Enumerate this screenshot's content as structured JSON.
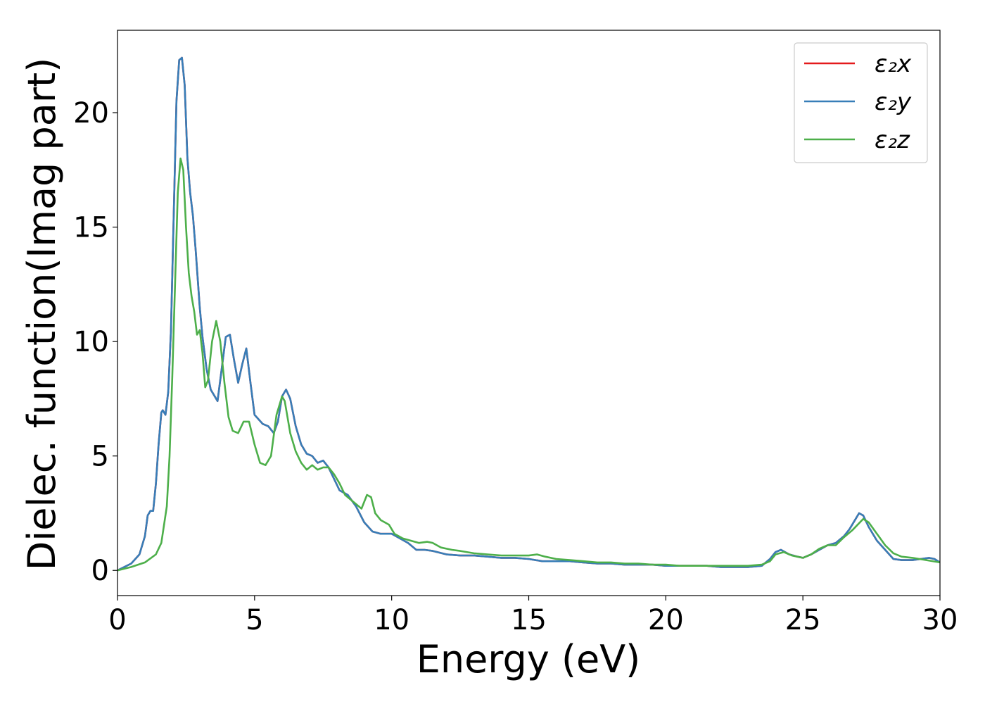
{
  "chart_data": {
    "type": "line",
    "xlabel": "Energy (eV)",
    "ylabel": "Dielec. function(Imag part)",
    "xlim": [
      0,
      30
    ],
    "ylim": [
      -1.1,
      23.6
    ],
    "xticks": [
      0,
      5,
      10,
      15,
      20,
      25,
      30
    ],
    "yticks": [
      0,
      5,
      10,
      15,
      20
    ],
    "grid": false,
    "legend_position": "top-right",
    "series": [
      {
        "name": "ε₂x",
        "color": "#e41a1c",
        "x": [
          0,
          0.5,
          0.8,
          1.0,
          1.1,
          1.2,
          1.3,
          1.4,
          1.5,
          1.6,
          1.65,
          1.75,
          1.85,
          1.95,
          2.05,
          2.15,
          2.25,
          2.35,
          2.45,
          2.55,
          2.65,
          2.75,
          2.85,
          3.0,
          3.1,
          3.25,
          3.4,
          3.5,
          3.65,
          3.8,
          3.95,
          4.1,
          4.25,
          4.4,
          4.55,
          4.7,
          4.85,
          5.0,
          5.3,
          5.5,
          5.7,
          5.85,
          6.0,
          6.15,
          6.3,
          6.5,
          6.7,
          6.9,
          7.1,
          7.3,
          7.5,
          7.7,
          7.9,
          8.1,
          8.4,
          8.7,
          9.0,
          9.3,
          9.6,
          10.0,
          10.3,
          10.6,
          10.9,
          11.2,
          11.5,
          12.0,
          12.5,
          13.0,
          13.5,
          14.0,
          14.5,
          15.0,
          15.5,
          16.0,
          16.5,
          17.0,
          17.5,
          18.0,
          18.5,
          19.0,
          19.5,
          20.0,
          20.5,
          21.0,
          21.5,
          22.0,
          22.5,
          23.0,
          23.5,
          23.8,
          24.0,
          24.2,
          24.5,
          24.8,
          25.0,
          25.3,
          25.6,
          25.9,
          26.2,
          26.5,
          26.7,
          26.9,
          27.05,
          27.2,
          27.4,
          27.7,
          28.0,
          28.3,
          28.6,
          29.0,
          29.3,
          29.6,
          29.8,
          30.0
        ],
        "values": [
          0,
          0.3,
          0.7,
          1.5,
          2.4,
          2.6,
          2.6,
          3.8,
          5.5,
          6.9,
          7.0,
          6.8,
          7.8,
          10.5,
          15.5,
          20.5,
          22.3,
          22.4,
          21.2,
          18.0,
          16.5,
          15.5,
          14.0,
          11.5,
          10.2,
          8.8,
          7.9,
          7.7,
          7.4,
          8.8,
          10.2,
          10.3,
          9.2,
          8.2,
          9.0,
          9.7,
          8.2,
          6.8,
          6.4,
          6.3,
          6.0,
          6.5,
          7.6,
          7.9,
          7.5,
          6.3,
          5.5,
          5.1,
          5.0,
          4.7,
          4.8,
          4.5,
          4.0,
          3.5,
          3.3,
          2.8,
          2.1,
          1.7,
          1.6,
          1.6,
          1.4,
          1.2,
          0.9,
          0.9,
          0.85,
          0.7,
          0.65,
          0.65,
          0.6,
          0.55,
          0.55,
          0.5,
          0.4,
          0.4,
          0.4,
          0.35,
          0.3,
          0.3,
          0.25,
          0.25,
          0.25,
          0.2,
          0.2,
          0.2,
          0.2,
          0.15,
          0.15,
          0.15,
          0.2,
          0.5,
          0.8,
          0.9,
          0.7,
          0.6,
          0.55,
          0.7,
          0.9,
          1.1,
          1.2,
          1.5,
          1.8,
          2.2,
          2.5,
          2.4,
          1.9,
          1.3,
          0.9,
          0.5,
          0.45,
          0.45,
          0.5,
          0.55,
          0.5,
          0.35
        ]
      },
      {
        "name": "ε₂y",
        "color": "#377eb8",
        "x": [
          0,
          0.5,
          0.8,
          1.0,
          1.1,
          1.2,
          1.3,
          1.4,
          1.5,
          1.6,
          1.65,
          1.75,
          1.85,
          1.95,
          2.05,
          2.15,
          2.25,
          2.35,
          2.45,
          2.55,
          2.65,
          2.75,
          2.85,
          3.0,
          3.1,
          3.25,
          3.4,
          3.5,
          3.65,
          3.8,
          3.95,
          4.1,
          4.25,
          4.4,
          4.55,
          4.7,
          4.85,
          5.0,
          5.3,
          5.5,
          5.7,
          5.85,
          6.0,
          6.15,
          6.3,
          6.5,
          6.7,
          6.9,
          7.1,
          7.3,
          7.5,
          7.7,
          7.9,
          8.1,
          8.4,
          8.7,
          9.0,
          9.3,
          9.6,
          10.0,
          10.3,
          10.6,
          10.9,
          11.2,
          11.5,
          12.0,
          12.5,
          13.0,
          13.5,
          14.0,
          14.5,
          15.0,
          15.5,
          16.0,
          16.5,
          17.0,
          17.5,
          18.0,
          18.5,
          19.0,
          19.5,
          20.0,
          20.5,
          21.0,
          21.5,
          22.0,
          22.5,
          23.0,
          23.5,
          23.8,
          24.0,
          24.2,
          24.5,
          24.8,
          25.0,
          25.3,
          25.6,
          25.9,
          26.2,
          26.5,
          26.7,
          26.9,
          27.05,
          27.2,
          27.4,
          27.7,
          28.0,
          28.3,
          28.6,
          29.0,
          29.3,
          29.6,
          29.8,
          30.0
        ],
        "values": [
          0,
          0.3,
          0.7,
          1.5,
          2.4,
          2.6,
          2.6,
          3.8,
          5.5,
          6.9,
          7.0,
          6.8,
          7.8,
          10.5,
          15.5,
          20.5,
          22.3,
          22.4,
          21.2,
          18.0,
          16.5,
          15.5,
          14.0,
          11.5,
          10.2,
          8.8,
          7.9,
          7.7,
          7.4,
          8.8,
          10.2,
          10.3,
          9.2,
          8.2,
          9.0,
          9.7,
          8.2,
          6.8,
          6.4,
          6.3,
          6.0,
          6.5,
          7.6,
          7.9,
          7.5,
          6.3,
          5.5,
          5.1,
          5.0,
          4.7,
          4.8,
          4.5,
          4.0,
          3.5,
          3.3,
          2.8,
          2.1,
          1.7,
          1.6,
          1.6,
          1.4,
          1.2,
          0.9,
          0.9,
          0.85,
          0.7,
          0.65,
          0.65,
          0.6,
          0.55,
          0.55,
          0.5,
          0.4,
          0.4,
          0.4,
          0.35,
          0.3,
          0.3,
          0.25,
          0.25,
          0.25,
          0.2,
          0.2,
          0.2,
          0.2,
          0.15,
          0.15,
          0.15,
          0.2,
          0.5,
          0.8,
          0.9,
          0.7,
          0.6,
          0.55,
          0.7,
          0.9,
          1.1,
          1.2,
          1.5,
          1.8,
          2.2,
          2.5,
          2.4,
          1.9,
          1.3,
          0.9,
          0.5,
          0.45,
          0.45,
          0.5,
          0.55,
          0.5,
          0.35
        ]
      },
      {
        "name": "ε₂z",
        "color": "#4daf4a",
        "x": [
          0,
          0.5,
          1.0,
          1.4,
          1.6,
          1.8,
          1.9,
          2.0,
          2.1,
          2.2,
          2.3,
          2.4,
          2.5,
          2.6,
          2.7,
          2.8,
          2.9,
          3.0,
          3.1,
          3.2,
          3.3,
          3.45,
          3.6,
          3.75,
          3.9,
          4.05,
          4.2,
          4.4,
          4.6,
          4.8,
          5.0,
          5.2,
          5.4,
          5.6,
          5.8,
          6.0,
          6.1,
          6.3,
          6.5,
          6.7,
          6.9,
          7.1,
          7.3,
          7.5,
          7.7,
          7.9,
          8.1,
          8.3,
          8.5,
          8.7,
          8.9,
          9.1,
          9.25,
          9.4,
          9.6,
          9.9,
          10.1,
          10.4,
          10.7,
          11.0,
          11.3,
          11.5,
          11.8,
          12.2,
          12.5,
          13.0,
          13.5,
          14.0,
          14.5,
          15.0,
          15.3,
          15.6,
          16.0,
          16.5,
          17.0,
          17.5,
          18.0,
          18.5,
          19.0,
          19.5,
          20.0,
          20.5,
          21.0,
          21.5,
          22.0,
          22.5,
          23.0,
          23.5,
          23.8,
          24.0,
          24.3,
          24.6,
          25.0,
          25.3,
          25.6,
          25.9,
          26.2,
          26.5,
          26.8,
          27.0,
          27.2,
          27.4,
          27.7,
          28.0,
          28.3,
          28.6,
          29.0,
          29.5,
          30.0
        ],
        "values": [
          0,
          0.15,
          0.35,
          0.7,
          1.2,
          2.8,
          5.0,
          8.5,
          12.5,
          16.5,
          18.0,
          17.5,
          15.0,
          13.0,
          12.0,
          11.3,
          10.3,
          10.5,
          9.5,
          8.0,
          8.3,
          10.0,
          10.9,
          10.0,
          8.2,
          6.7,
          6.1,
          6.0,
          6.5,
          6.5,
          5.5,
          4.7,
          4.6,
          5.0,
          6.8,
          7.6,
          7.4,
          6.0,
          5.2,
          4.7,
          4.4,
          4.6,
          4.4,
          4.5,
          4.5,
          4.2,
          3.8,
          3.3,
          3.1,
          2.9,
          2.7,
          3.3,
          3.2,
          2.5,
          2.2,
          2.0,
          1.6,
          1.4,
          1.3,
          1.2,
          1.25,
          1.2,
          1.0,
          0.9,
          0.85,
          0.75,
          0.7,
          0.65,
          0.65,
          0.65,
          0.7,
          0.6,
          0.5,
          0.45,
          0.4,
          0.35,
          0.35,
          0.3,
          0.3,
          0.25,
          0.25,
          0.2,
          0.2,
          0.2,
          0.2,
          0.2,
          0.2,
          0.25,
          0.4,
          0.7,
          0.8,
          0.65,
          0.55,
          0.7,
          0.95,
          1.1,
          1.1,
          1.45,
          1.75,
          2.0,
          2.25,
          2.1,
          1.6,
          1.1,
          0.75,
          0.6,
          0.55,
          0.45,
          0.35
        ]
      }
    ]
  }
}
